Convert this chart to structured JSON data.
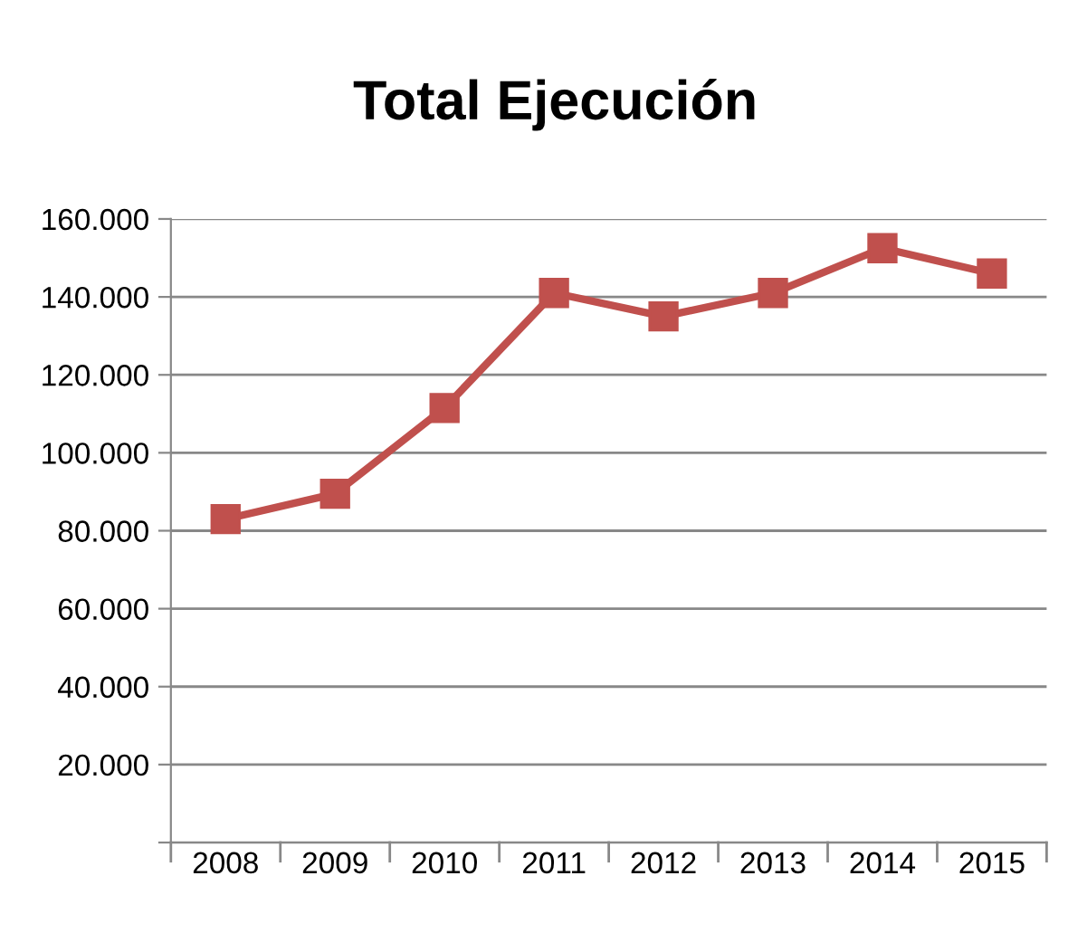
{
  "chart_data": {
    "type": "line",
    "title": "Total Ejecución",
    "categories": [
      "2008",
      "2009",
      "2010",
      "2011",
      "2012",
      "2013",
      "2014",
      "2015"
    ],
    "series": [
      {
        "color": "#c0504d",
        "values": [
          83000,
          89500,
          111500,
          141000,
          135000,
          141000,
          152500,
          146000
        ]
      }
    ],
    "ylim": [
      0,
      160000
    ],
    "yticks": [
      {
        "value": 0,
        "label": null
      },
      {
        "value": 20000,
        "label": "20.000"
      },
      {
        "value": 40000,
        "label": "40.000"
      },
      {
        "value": 60000,
        "label": "60.000"
      },
      {
        "value": 80000,
        "label": "80.000"
      },
      {
        "value": 100000,
        "label": "100.000"
      },
      {
        "value": 120000,
        "label": "120.000"
      },
      {
        "value": 140000,
        "label": "140.000"
      },
      {
        "value": 160000,
        "label": "160.000"
      }
    ],
    "grid": "y",
    "legend": false,
    "marker": "square",
    "line_style": "solid"
  }
}
